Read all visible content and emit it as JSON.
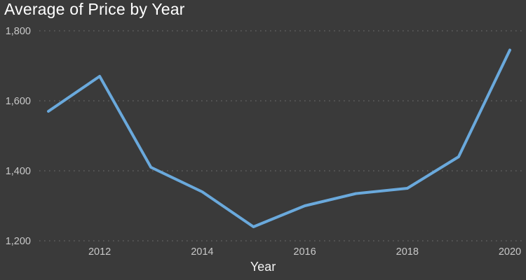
{
  "chart_data": {
    "type": "line",
    "title": "Average of Price by Year",
    "xlabel": "Year",
    "ylabel": "Average of Price",
    "x": [
      2011,
      2012,
      2013,
      2014,
      2015,
      2016,
      2017,
      2018,
      2019,
      2020
    ],
    "series": [
      {
        "name": "Average of Price",
        "values": [
          1570,
          1670,
          1410,
          1340,
          1240,
          1300,
          1335,
          1350,
          1440,
          1745
        ]
      }
    ],
    "ylim": [
      1200,
      1800
    ],
    "yticks": [
      1200,
      1400,
      1600,
      1800
    ],
    "ytick_labels": [
      "1,200",
      "1,400",
      "1,600",
      "1,800"
    ],
    "xticks": [
      2012,
      2014,
      2016,
      2018,
      2020
    ],
    "xtick_labels": [
      "2012",
      "2014",
      "2016",
      "2018",
      "2020"
    ],
    "grid": "horizontal-dotted",
    "legend_position": "none",
    "colors": {
      "background": "#3A3A3A",
      "line": "#6AA9DC",
      "gridline": "#616161",
      "tick_label": "#C8C8C8",
      "title": "#FFFFFF",
      "axis_title": "#F2F2F2"
    }
  }
}
